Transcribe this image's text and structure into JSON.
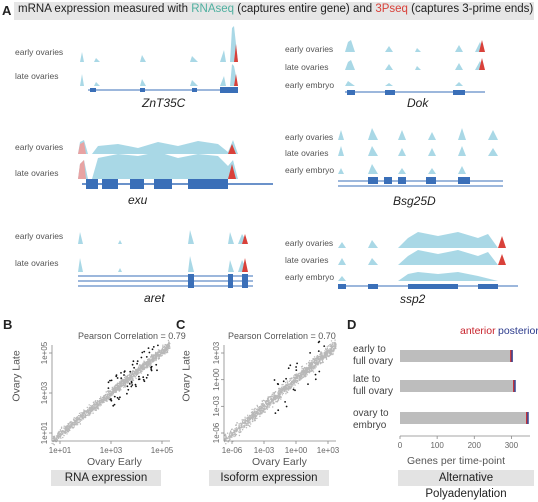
{
  "panels": {
    "a": "A",
    "b": "B",
    "c": "C",
    "d": "D"
  },
  "header": {
    "part1": "mRNA expression measured with ",
    "rna": "RNAseq",
    "part2": " (captures entire gene) and ",
    "three": "3Pseq",
    "part3": " (captures 3-prime ends)"
  },
  "colors": {
    "rnaseq": "#a9d8e6",
    "threepseq": "#d9413a",
    "gene_model": "#3a6fb8",
    "scatter": "#b8b8b8",
    "anterior": "#c8232c",
    "posterior": "#2b3a8c",
    "bar": "#bdbdbd"
  },
  "tracks": {
    "early_ovaries": "early ovaries",
    "late_ovaries": "late ovaries",
    "early_embryo": "early embryo"
  },
  "genes": {
    "zn": "ZnT35C",
    "dok": "Dok",
    "exu": "exu",
    "bsg": "Bsg25D",
    "aret": "aret",
    "ssp2": "ssp2"
  },
  "panel_b": {
    "annotation": "Pearson Correlation = 0.79",
    "ylabel": "Ovary Late",
    "xlabel": "Ovary Early",
    "footer": "RNA expression",
    "xticks": [
      "1e+01",
      "1e+03",
      "1e+05"
    ],
    "yticks": [
      "1e+01",
      "1e+03",
      "1e+05"
    ]
  },
  "panel_c": {
    "annotation": "Pearson Correlation = 0.70",
    "ylabel": "Ovary Late",
    "xlabel": "Ovary Early",
    "footer": "Isoform expression",
    "xticks": [
      "1e-06",
      "1e-03",
      "1e+00",
      "1e+03"
    ],
    "yticks": [
      "1e-06",
      "1e-03",
      "1e+00",
      "1e+03"
    ]
  },
  "chart_data": [
    {
      "type": "scatter",
      "title": "Pearson Correlation = 0.79",
      "xlabel": "Ovary Early",
      "ylabel": "Ovary Late",
      "scale": "log",
      "series": [
        {
          "name": "",
          "x": [
            10,
            100,
            1000,
            10000,
            100000
          ],
          "y": [
            10,
            100,
            1000,
            10000,
            100000
          ]
        }
      ]
    },
    {
      "type": "scatter",
      "title": "Pearson Correlation = 0.70",
      "xlabel": "Ovary Early",
      "ylabel": "Ovary Late",
      "scale": "log",
      "series": [
        {
          "name": "",
          "x": [
            1e-06,
            0.001,
            1,
            1000
          ],
          "y": [
            1e-06,
            0.001,
            1,
            1000
          ]
        }
      ]
    },
    {
      "type": "bar",
      "orientation": "horizontal",
      "categories": [
        "early to full ovary",
        "late to full ovary",
        "ovary to embryo"
      ],
      "values": [
        302,
        310,
        345
      ],
      "xlim": [
        0,
        350
      ],
      "xticks": [
        "0",
        "100",
        "200",
        "300"
      ],
      "legend": [
        "anterior",
        "posterior"
      ],
      "xlabel": "Genes per time-point",
      "footer": "Alternative Polyadenylation"
    }
  ],
  "panel_d": {
    "anterior": "anterior",
    "posterior": "posterior",
    "xlabel": "Genes per time-point",
    "footer": "Alternative Polyadenylation",
    "cats": [
      "early to\nfull ovary",
      "late to\nfull ovary",
      "ovary to\nembryo"
    ],
    "xticks": [
      "0",
      "100",
      "200",
      "300"
    ]
  }
}
